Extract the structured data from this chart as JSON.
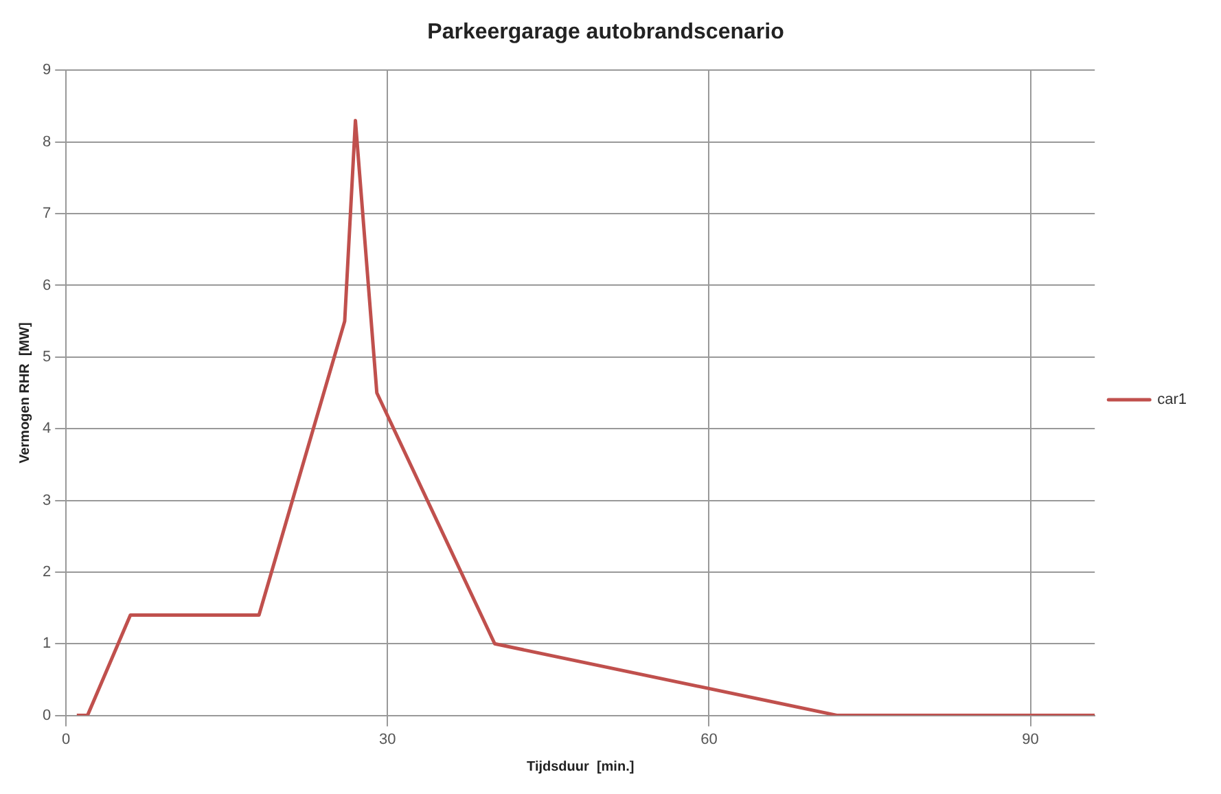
{
  "chart_data": {
    "type": "line",
    "title": "Parkeergarage autobrandscenario",
    "xlabel": "Tijdsduur  [min.]",
    "ylabel": "Vermogen RHR  [MW]",
    "x": [
      1,
      2,
      6,
      18,
      26,
      27,
      29,
      40,
      72,
      96
    ],
    "series": [
      {
        "name": "car1",
        "color": "#c0504d",
        "values": [
          0,
          0,
          1.4,
          1.4,
          5.5,
          8.3,
          4.5,
          1,
          0,
          0
        ]
      }
    ],
    "xlim": [
      0,
      96
    ],
    "xticks": [
      0,
      30,
      60,
      90
    ],
    "ylim": [
      0,
      9
    ],
    "yticks": [
      0,
      1,
      2,
      3,
      4,
      5,
      6,
      7,
      8,
      9
    ],
    "grid": true,
    "legend": "right",
    "marker": "none",
    "line_style": "solid"
  }
}
